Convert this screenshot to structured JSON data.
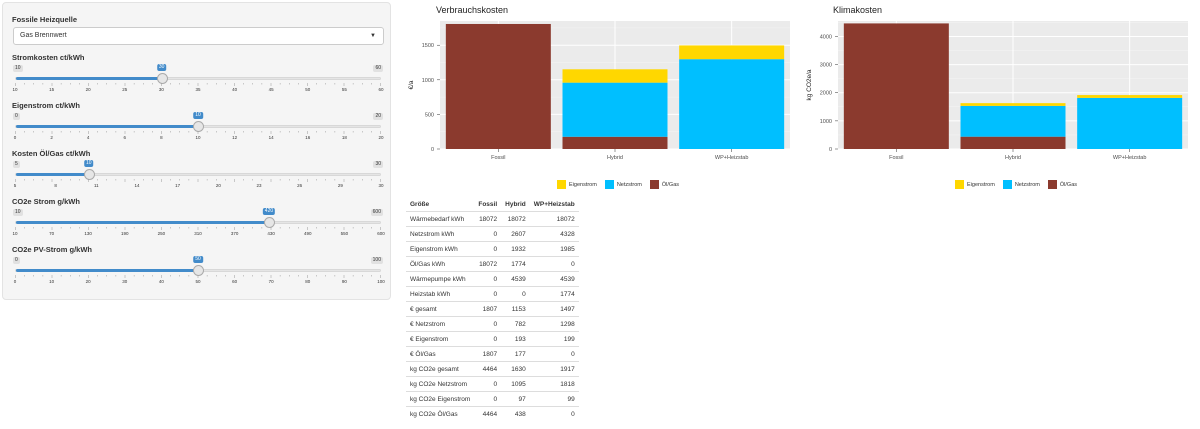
{
  "colors": {
    "eigenstrom": "#FFD700",
    "netzstrom": "#00BFFF",
    "oelgas": "#8B3A2E",
    "slider": "#428bca"
  },
  "controls": {
    "heizquelle": {
      "label": "Fossile Heizquelle",
      "value": "Gas Brennwert",
      "icon": "caret-down-icon"
    },
    "sliders": [
      {
        "label": "Stromkosten ct/kWh",
        "min": "10",
        "max": "60",
        "value": "30",
        "fraction": 0.4,
        "ticks": [
          "10",
          "15",
          "20",
          "25",
          "30",
          "35",
          "40",
          "45",
          "50",
          "55",
          "60"
        ]
      },
      {
        "label": "Eigenstrom ct/kWh",
        "min": "0",
        "max": "20",
        "value": "10",
        "fraction": 0.5,
        "ticks": [
          "0",
          "2",
          "4",
          "6",
          "8",
          "10",
          "12",
          "14",
          "16",
          "18",
          "20"
        ]
      },
      {
        "label": "Kosten Öl/Gas ct/kWh",
        "min": "5",
        "max": "30",
        "value": "10",
        "fraction": 0.2,
        "ticks": [
          "5",
          "8",
          "11",
          "14",
          "17",
          "20",
          "23",
          "26",
          "29",
          "30"
        ]
      },
      {
        "label": "CO2e Strom g/kWh",
        "min": "10",
        "max": "600",
        "value": "420",
        "fraction": 0.695,
        "ticks": [
          "10",
          "70",
          "130",
          "190",
          "250",
          "310",
          "370",
          "430",
          "490",
          "550",
          "600"
        ]
      },
      {
        "label": "CO2e PV-Strom g/kWh",
        "min": "0",
        "max": "100",
        "value": "50",
        "fraction": 0.5,
        "ticks": [
          "0",
          "10",
          "20",
          "30",
          "40",
          "50",
          "60",
          "70",
          "80",
          "90",
          "100"
        ]
      }
    ]
  },
  "chart_data": [
    {
      "type": "bar",
      "title": "Verbrauchskosten",
      "ylabel": "€/a",
      "categories": [
        "Fossil",
        "Hybrid",
        "WP+Heizstab"
      ],
      "ylim": [
        0,
        1850
      ],
      "yticks": [
        0,
        500,
        1000,
        1500
      ],
      "series": [
        {
          "name": "Öl/Gas",
          "values": [
            1807,
            177,
            0
          ]
        },
        {
          "name": "Netzstrom",
          "values": [
            0,
            782,
            1298
          ]
        },
        {
          "name": "Eigenstrom",
          "values": [
            0,
            193,
            199
          ]
        }
      ],
      "legend": "bottom"
    },
    {
      "type": "bar",
      "title": "Klimakosten",
      "ylabel": "kg CO2e/a",
      "categories": [
        "Fossil",
        "Hybrid",
        "WP+Heizstab"
      ],
      "ylim": [
        0,
        4550
      ],
      "yticks": [
        0,
        1000,
        2000,
        3000,
        4000
      ],
      "series": [
        {
          "name": "Öl/Gas",
          "values": [
            4464,
            438,
            0
          ]
        },
        {
          "name": "Netzstrom",
          "values": [
            0,
            1095,
            1818
          ]
        },
        {
          "name": "Eigenstrom",
          "values": [
            0,
            97,
            99
          ]
        }
      ],
      "legend": "bottom"
    }
  ],
  "legend_items": [
    {
      "label": "Eigenstrom",
      "color": "#FFD700"
    },
    {
      "label": "Netzstrom",
      "color": "#00BFFF"
    },
    {
      "label": "Öl/Gas",
      "color": "#8B3A2E"
    }
  ],
  "table": {
    "headers": [
      "Größe",
      "Fossil",
      "Hybrid",
      "WP+Heizstab"
    ],
    "rows": [
      [
        "Wärmebedarf kWh",
        "18072",
        "18072",
        "18072"
      ],
      [
        "Netzstrom kWh",
        "0",
        "2607",
        "4328"
      ],
      [
        "Eigenstrom kWh",
        "0",
        "1932",
        "1985"
      ],
      [
        "Öl/Gas kWh",
        "18072",
        "1774",
        "0"
      ],
      [
        "Wärmepumpe kWh",
        "0",
        "4539",
        "4539"
      ],
      [
        "Heizstab kWh",
        "0",
        "0",
        "1774"
      ],
      [
        "€ gesamt",
        "1807",
        "1153",
        "1497"
      ],
      [
        "€ Netzstrom",
        "0",
        "782",
        "1298"
      ],
      [
        "€ Eigenstrom",
        "0",
        "193",
        "199"
      ],
      [
        "€ Öl/Gas",
        "1807",
        "177",
        "0"
      ],
      [
        "kg CO2e gesamt",
        "4464",
        "1630",
        "1917"
      ],
      [
        "kg CO2e Netzstrom",
        "0",
        "1095",
        "1818"
      ],
      [
        "kg CO2e Eigenstrom",
        "0",
        "97",
        "99"
      ],
      [
        "kg CO2e Öl/Gas",
        "4464",
        "438",
        "0"
      ]
    ]
  }
}
